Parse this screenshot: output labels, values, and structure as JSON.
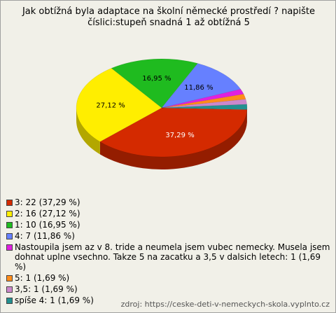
{
  "chart_data": {
    "type": "pie",
    "title": "Jak obtížná byla adaptace na školní německé prostředí ? napište číslici:stupeň snadná 1 až obtížná 5",
    "categories": [
      "3: 22 (37,29 %)",
      "2: 16 (27,12 %)",
      "1: 10 (16,95 %)",
      "4: 7 (11,86 %)",
      "Nastoupila jsem az v 8. tride a neumela jsem vubec nemecky. Musela jsem dohnat uplne vsechno. Takze 5 na zacatku a 3,5 v dalsich letech: 1 (1,69 %)",
      "5: 1 (1,69 %)",
      "3,5: 1 (1,69 %)",
      "spíše 4: 1 (1,69 %)"
    ],
    "values": [
      37.29,
      27.12,
      16.95,
      11.86,
      1.69,
      1.69,
      1.69,
      1.69
    ],
    "value_labels": [
      "37,29 %",
      "27,12 %",
      "16,95 %",
      "11,86 %",
      null,
      null,
      null,
      null
    ],
    "colors": [
      "#d42a00",
      "#ffee00",
      "#1fbb1f",
      "#6680ff",
      "#e020e0",
      "#ff8c1a",
      "#cc88cc",
      "#239090"
    ],
    "source": "zdroj: https://ceske-deti-v-nemeckych-skola.vyplnto.cz"
  }
}
